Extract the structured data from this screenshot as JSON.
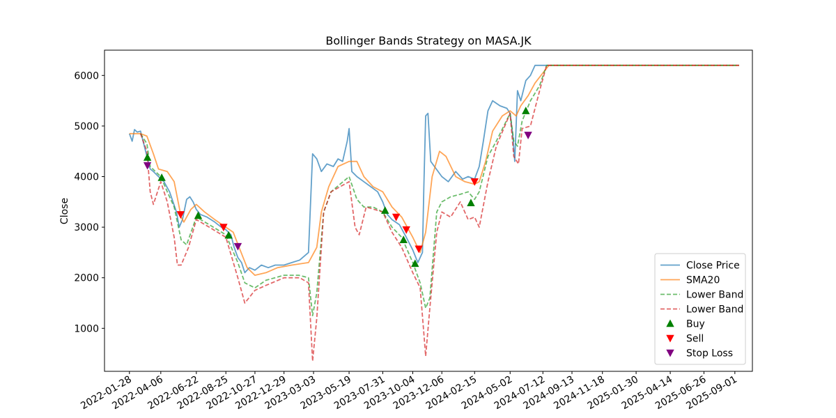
{
  "chart_data": {
    "type": "line",
    "title": "Bollinger Bands Strategy on MASA.JK",
    "xlabel": "",
    "ylabel": "Close",
    "ylim": [
      150,
      6500
    ],
    "xlim": [
      "2021-12-05",
      "2025-10-09"
    ],
    "grid": false,
    "legend_position": "lower-right",
    "y_ticks": [
      1000,
      2000,
      3000,
      4000,
      5000,
      6000
    ],
    "x_ticks": [
      "2022-01-28",
      "2022-04-06",
      "2022-06-22",
      "2022-08-25",
      "2022-10-27",
      "2022-12-29",
      "2023-03-03",
      "2023-05-19",
      "2023-07-31",
      "2023-10-04",
      "2023-12-06",
      "2024-02-15",
      "2024-05-02",
      "2024-07-12",
      "2024-09-13",
      "2024-11-18",
      "2025-01-30",
      "2025-04-14",
      "2025-06-26",
      "2025-09-01"
    ],
    "series": [
      {
        "name": "Close Price",
        "color": "#1f77b4",
        "style": "solid",
        "points": [
          [
            "2022-01-28",
            4850
          ],
          [
            "2022-02-03",
            4700
          ],
          [
            "2022-02-08",
            4930
          ],
          [
            "2022-02-14",
            4880
          ],
          [
            "2022-02-21",
            4900
          ],
          [
            "2022-02-28",
            4650
          ],
          [
            "2022-03-07",
            4400
          ],
          [
            "2022-03-14",
            4150
          ],
          [
            "2022-03-21",
            4100
          ],
          [
            "2022-04-01",
            4000
          ],
          [
            "2022-04-13",
            3900
          ],
          [
            "2022-04-25",
            3700
          ],
          [
            "2022-05-10",
            3300
          ],
          [
            "2022-05-16",
            3000
          ],
          [
            "2022-05-23",
            3150
          ],
          [
            "2022-06-01",
            3550
          ],
          [
            "2022-06-08",
            3600
          ],
          [
            "2022-06-15",
            3500
          ],
          [
            "2022-06-22",
            3350
          ],
          [
            "2022-07-01",
            3250
          ],
          [
            "2022-07-15",
            3200
          ],
          [
            "2022-08-01",
            3100
          ],
          [
            "2022-08-15",
            3000
          ],
          [
            "2022-08-25",
            2950
          ],
          [
            "2022-09-05",
            2850
          ],
          [
            "2022-09-12",
            2600
          ],
          [
            "2022-09-20",
            2400
          ],
          [
            "2022-09-28",
            2300
          ],
          [
            "2022-10-05",
            2100
          ],
          [
            "2022-10-15",
            2200
          ],
          [
            "2022-10-27",
            2150
          ],
          [
            "2022-11-10",
            2250
          ],
          [
            "2022-11-25",
            2200
          ],
          [
            "2022-12-10",
            2250
          ],
          [
            "2022-12-29",
            2250
          ],
          [
            "2023-01-15",
            2300
          ],
          [
            "2023-02-01",
            2350
          ],
          [
            "2023-02-20",
            2500
          ],
          [
            "2023-03-01",
            4450
          ],
          [
            "2023-03-10",
            4350
          ],
          [
            "2023-03-20",
            4100
          ],
          [
            "2023-04-01",
            4250
          ],
          [
            "2023-04-15",
            4200
          ],
          [
            "2023-04-25",
            4350
          ],
          [
            "2023-05-05",
            4300
          ],
          [
            "2023-05-15",
            4700
          ],
          [
            "2023-05-19",
            4950
          ],
          [
            "2023-05-25",
            4100
          ],
          [
            "2023-06-05",
            4000
          ],
          [
            "2023-06-20",
            3900
          ],
          [
            "2023-07-05",
            3800
          ],
          [
            "2023-07-20",
            3700
          ],
          [
            "2023-07-31",
            3500
          ],
          [
            "2023-08-10",
            3250
          ],
          [
            "2023-08-20",
            3150
          ],
          [
            "2023-09-05",
            3050
          ],
          [
            "2023-09-20",
            2800
          ],
          [
            "2023-10-04",
            2550
          ],
          [
            "2023-10-15",
            2300
          ],
          [
            "2023-10-25",
            2500
          ],
          [
            "2023-10-28",
            3800
          ],
          [
            "2023-11-01",
            5200
          ],
          [
            "2023-11-06",
            5250
          ],
          [
            "2023-11-12",
            4300
          ],
          [
            "2023-11-20",
            4200
          ],
          [
            "2023-12-06",
            4000
          ],
          [
            "2023-12-20",
            3900
          ],
          [
            "2024-01-05",
            4100
          ],
          [
            "2024-01-20",
            3950
          ],
          [
            "2024-02-01",
            4000
          ],
          [
            "2024-02-15",
            3950
          ],
          [
            "2024-02-25",
            4200
          ],
          [
            "2024-03-05",
            4700
          ],
          [
            "2024-03-15",
            5300
          ],
          [
            "2024-03-25",
            5500
          ],
          [
            "2024-04-10",
            5400
          ],
          [
            "2024-04-25",
            5350
          ],
          [
            "2024-05-02",
            5250
          ],
          [
            "2024-05-08",
            4800
          ],
          [
            "2024-05-12",
            4300
          ],
          [
            "2024-05-18",
            5700
          ],
          [
            "2024-05-25",
            5500
          ],
          [
            "2024-06-05",
            5900
          ],
          [
            "2024-06-15",
            6000
          ],
          [
            "2024-06-25",
            6200
          ],
          [
            "2024-07-12",
            6200
          ],
          [
            "2024-09-13",
            6200
          ],
          [
            "2025-01-30",
            6200
          ],
          [
            "2025-06-26",
            6200
          ],
          [
            "2025-09-10",
            6200
          ]
        ]
      },
      {
        "name": "SMA20",
        "color": "#ff7f0e",
        "style": "solid",
        "points": [
          [
            "2022-01-28",
            4850
          ],
          [
            "2022-02-21",
            4850
          ],
          [
            "2022-03-07",
            4800
          ],
          [
            "2022-03-21",
            4450
          ],
          [
            "2022-04-01",
            4150
          ],
          [
            "2022-04-20",
            4100
          ],
          [
            "2022-05-05",
            3900
          ],
          [
            "2022-05-20",
            3200
          ],
          [
            "2022-05-26",
            3100
          ],
          [
            "2022-06-10",
            3350
          ],
          [
            "2022-06-22",
            3450
          ],
          [
            "2022-07-10",
            3300
          ],
          [
            "2022-08-01",
            3150
          ],
          [
            "2022-08-25",
            3000
          ],
          [
            "2022-09-10",
            2900
          ],
          [
            "2022-09-25",
            2550
          ],
          [
            "2022-10-10",
            2200
          ],
          [
            "2022-10-27",
            2050
          ],
          [
            "2022-11-20",
            2100
          ],
          [
            "2022-12-15",
            2200
          ],
          [
            "2023-01-15",
            2250
          ],
          [
            "2023-02-20",
            2300
          ],
          [
            "2023-03-10",
            2600
          ],
          [
            "2023-03-20",
            3300
          ],
          [
            "2023-04-05",
            3800
          ],
          [
            "2023-04-25",
            4200
          ],
          [
            "2023-05-19",
            4300
          ],
          [
            "2023-06-05",
            4300
          ],
          [
            "2023-06-20",
            4000
          ],
          [
            "2023-07-10",
            3800
          ],
          [
            "2023-07-31",
            3700
          ],
          [
            "2023-08-20",
            3400
          ],
          [
            "2023-09-10",
            3200
          ],
          [
            "2023-10-04",
            2800
          ],
          [
            "2023-10-20",
            2500
          ],
          [
            "2023-11-01",
            2900
          ],
          [
            "2023-11-15",
            4000
          ],
          [
            "2023-12-01",
            4500
          ],
          [
            "2023-12-15",
            4400
          ],
          [
            "2024-01-05",
            4000
          ],
          [
            "2024-01-25",
            3900
          ],
          [
            "2024-02-15",
            3850
          ],
          [
            "2024-02-25",
            3900
          ],
          [
            "2024-03-10",
            4300
          ],
          [
            "2024-03-25",
            4900
          ],
          [
            "2024-04-15",
            5200
          ],
          [
            "2024-05-02",
            5300
          ],
          [
            "2024-05-15",
            5200
          ],
          [
            "2024-05-25",
            5400
          ],
          [
            "2024-06-10",
            5600
          ],
          [
            "2024-06-25",
            5850
          ],
          [
            "2024-07-12",
            6050
          ],
          [
            "2024-07-25",
            6200
          ],
          [
            "2025-09-10",
            6200
          ]
        ]
      },
      {
        "name": "Lower Band",
        "color": "#2ca02c",
        "style": "dashed",
        "points": [
          [
            "2022-02-21",
            4850
          ],
          [
            "2022-03-07",
            4650
          ],
          [
            "2022-03-14",
            4200
          ],
          [
            "2022-04-06",
            4000
          ],
          [
            "2022-04-20",
            3700
          ],
          [
            "2022-05-05",
            3400
          ],
          [
            "2022-05-20",
            2750
          ],
          [
            "2022-06-01",
            2650
          ],
          [
            "2022-06-22",
            3200
          ],
          [
            "2022-07-20",
            3050
          ],
          [
            "2022-08-25",
            2850
          ],
          [
            "2022-09-20",
            2300
          ],
          [
            "2022-10-05",
            1900
          ],
          [
            "2022-10-27",
            1800
          ],
          [
            "2022-11-20",
            1950
          ],
          [
            "2022-12-29",
            2050
          ],
          [
            "2023-01-30",
            2050
          ],
          [
            "2023-02-20",
            2000
          ],
          [
            "2023-03-01",
            1250
          ],
          [
            "2023-03-10",
            1700
          ],
          [
            "2023-03-25",
            3300
          ],
          [
            "2023-04-10",
            3700
          ],
          [
            "2023-05-19",
            4000
          ],
          [
            "2023-06-05",
            3550
          ],
          [
            "2023-06-20",
            3400
          ],
          [
            "2023-07-10",
            3400
          ],
          [
            "2023-07-31",
            3300
          ],
          [
            "2023-08-20",
            3000
          ],
          [
            "2023-09-10",
            2800
          ],
          [
            "2023-10-04",
            2300
          ],
          [
            "2023-10-20",
            1900
          ],
          [
            "2023-11-01",
            1400
          ],
          [
            "2023-11-10",
            1600
          ],
          [
            "2023-11-25",
            3300
          ],
          [
            "2023-12-06",
            3500
          ],
          [
            "2023-12-25",
            3600
          ],
          [
            "2024-01-15",
            3650
          ],
          [
            "2024-02-01",
            3700
          ],
          [
            "2024-02-15",
            3550
          ],
          [
            "2024-02-25",
            3700
          ],
          [
            "2024-03-15",
            4400
          ],
          [
            "2024-04-02",
            4700
          ],
          [
            "2024-05-02",
            5250
          ],
          [
            "2024-05-10",
            4700
          ],
          [
            "2024-05-18",
            4600
          ],
          [
            "2024-05-28",
            5100
          ],
          [
            "2024-06-15",
            5500
          ],
          [
            "2024-07-05",
            5800
          ],
          [
            "2024-07-20",
            6200
          ],
          [
            "2025-09-10",
            6200
          ]
        ]
      },
      {
        "name": "Lower Band",
        "color": "#d62728",
        "style": "dashed",
        "points": [
          [
            "2022-02-21",
            4850
          ],
          [
            "2022-03-07",
            4500
          ],
          [
            "2022-03-14",
            3700
          ],
          [
            "2022-03-21",
            3450
          ],
          [
            "2022-04-06",
            3900
          ],
          [
            "2022-04-20",
            3500
          ],
          [
            "2022-05-05",
            2800
          ],
          [
            "2022-05-12",
            2250
          ],
          [
            "2022-05-20",
            2250
          ],
          [
            "2022-06-05",
            2600
          ],
          [
            "2022-06-22",
            3150
          ],
          [
            "2022-07-20",
            3000
          ],
          [
            "2022-08-25",
            2800
          ],
          [
            "2022-09-20",
            2000
          ],
          [
            "2022-10-05",
            1500
          ],
          [
            "2022-10-27",
            1750
          ],
          [
            "2022-11-20",
            1850
          ],
          [
            "2022-12-29",
            2000
          ],
          [
            "2023-02-01",
            2000
          ],
          [
            "2023-02-20",
            1900
          ],
          [
            "2023-03-01",
            350
          ],
          [
            "2023-03-10",
            1200
          ],
          [
            "2023-03-25",
            3300
          ],
          [
            "2023-04-10",
            3700
          ],
          [
            "2023-05-19",
            3900
          ],
          [
            "2023-06-01",
            3000
          ],
          [
            "2023-06-10",
            2850
          ],
          [
            "2023-06-25",
            3400
          ],
          [
            "2023-07-31",
            3300
          ],
          [
            "2023-08-20",
            2900
          ],
          [
            "2023-09-10",
            2600
          ],
          [
            "2023-10-04",
            2100
          ],
          [
            "2023-10-20",
            1800
          ],
          [
            "2023-10-28",
            900
          ],
          [
            "2023-11-01",
            450
          ],
          [
            "2023-11-10",
            1400
          ],
          [
            "2023-11-25",
            2900
          ],
          [
            "2023-12-06",
            3300
          ],
          [
            "2023-12-25",
            3200
          ],
          [
            "2024-01-15",
            3500
          ],
          [
            "2024-02-01",
            3150
          ],
          [
            "2024-02-15",
            3200
          ],
          [
            "2024-02-25",
            3000
          ],
          [
            "2024-03-15",
            3900
          ],
          [
            "2024-04-02",
            4600
          ],
          [
            "2024-05-02",
            5250
          ],
          [
            "2024-05-10",
            4400
          ],
          [
            "2024-05-20",
            4250
          ],
          [
            "2024-05-28",
            4950
          ],
          [
            "2024-06-15",
            5000
          ],
          [
            "2024-07-05",
            5700
          ],
          [
            "2024-07-20",
            6200
          ],
          [
            "2025-09-10",
            6200
          ]
        ]
      }
    ],
    "signals": [
      {
        "name": "Buy",
        "color": "#008000",
        "marker": "triangle-up",
        "points": [
          [
            "2022-03-08",
            4380
          ],
          [
            "2022-04-08",
            3980
          ],
          [
            "2022-06-26",
            3230
          ],
          [
            "2022-08-31",
            2840
          ],
          [
            "2023-08-05",
            3330
          ],
          [
            "2023-09-14",
            2750
          ],
          [
            "2023-10-09",
            2280
          ],
          [
            "2024-02-07",
            3480
          ],
          [
            "2024-06-05",
            5300
          ]
        ]
      },
      {
        "name": "Sell",
        "color": "#ff0000",
        "marker": "triangle-down",
        "points": [
          [
            "2022-05-19",
            3250
          ],
          [
            "2022-08-20",
            3000
          ],
          [
            "2023-08-29",
            3200
          ],
          [
            "2023-09-20",
            2950
          ],
          [
            "2023-10-17",
            2570
          ],
          [
            "2024-02-15",
            3900
          ]
        ]
      },
      {
        "name": "Stop Loss",
        "color": "#800080",
        "marker": "triangle-down",
        "points": [
          [
            "2022-03-08",
            4220
          ],
          [
            "2022-09-20",
            2620
          ],
          [
            "2024-06-10",
            4820
          ]
        ]
      }
    ]
  }
}
